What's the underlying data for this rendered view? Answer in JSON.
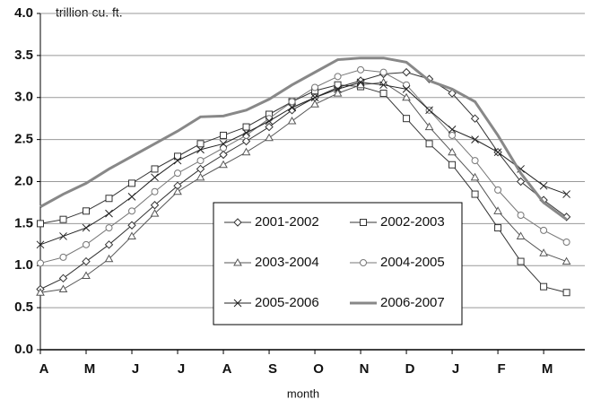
{
  "chart_data": {
    "type": "line",
    "ylabel": "trillion cu. ft.",
    "xlabel": "month",
    "x": [
      0,
      0.5,
      1,
      1.5,
      2,
      2.5,
      3,
      3.5,
      4,
      4.5,
      5,
      5.5,
      6,
      6.5,
      7,
      7.5,
      8,
      8.5,
      9,
      9.5,
      10,
      10.5,
      11,
      11.5
    ],
    "xlim": [
      0,
      11.9
    ],
    "xticks": [
      {
        "value": 0,
        "label": "A"
      },
      {
        "value": 1,
        "label": "M"
      },
      {
        "value": 2,
        "label": "J"
      },
      {
        "value": 3,
        "label": "J"
      },
      {
        "value": 4,
        "label": "A"
      },
      {
        "value": 5,
        "label": "S"
      },
      {
        "value": 6,
        "label": "O"
      },
      {
        "value": 7,
        "label": "N"
      },
      {
        "value": 8,
        "label": "D"
      },
      {
        "value": 9,
        "label": "J"
      },
      {
        "value": 10,
        "label": "F"
      },
      {
        "value": 11,
        "label": "M"
      }
    ],
    "ylim": [
      0,
      4
    ],
    "yticks": [
      {
        "value": 0,
        "label": "0.0"
      },
      0.5,
      {
        "value": 1,
        "label": "1.0"
      },
      1.5,
      {
        "value": 2,
        "label": "2.0"
      },
      2.5,
      {
        "value": 3,
        "label": "3.0"
      },
      3.5,
      {
        "value": 4,
        "label": "4.0"
      }
    ],
    "grid": true,
    "legend": "center",
    "series": [
      {
        "name": "2001-2002",
        "color": "#333333",
        "marker": "diamond",
        "values": [
          0.72,
          0.85,
          1.05,
          1.25,
          1.48,
          1.72,
          1.95,
          2.15,
          2.32,
          2.48,
          2.65,
          2.85,
          3.0,
          3.12,
          3.2,
          3.28,
          3.3,
          3.22,
          3.05,
          2.75,
          2.35,
          2.0,
          1.78,
          1.58
        ]
      },
      {
        "name": "2002-2003",
        "color": "#333333",
        "marker": "square",
        "values": [
          1.5,
          1.55,
          1.65,
          1.8,
          1.98,
          2.15,
          2.3,
          2.45,
          2.55,
          2.65,
          2.8,
          2.95,
          3.08,
          3.15,
          3.13,
          3.05,
          2.75,
          2.45,
          2.2,
          1.85,
          1.45,
          1.05,
          0.75,
          0.68
        ]
      },
      {
        "name": "2003-2004",
        "color": "#555555",
        "marker": "triangle",
        "values": [
          0.68,
          0.72,
          0.88,
          1.08,
          1.35,
          1.62,
          1.88,
          2.05,
          2.2,
          2.35,
          2.52,
          2.72,
          2.92,
          3.05,
          3.15,
          3.18,
          3.0,
          2.65,
          2.35,
          2.05,
          1.65,
          1.35,
          1.15,
          1.05
        ]
      },
      {
        "name": "2004-2005",
        "color": "#777777",
        "marker": "circle",
        "values": [
          1.03,
          1.1,
          1.25,
          1.45,
          1.65,
          1.88,
          2.1,
          2.25,
          2.4,
          2.55,
          2.75,
          2.95,
          3.12,
          3.25,
          3.33,
          3.3,
          3.15,
          2.85,
          2.55,
          2.25,
          1.9,
          1.6,
          1.42,
          1.28
        ]
      },
      {
        "name": "2005-2006",
        "color": "#222222",
        "marker": "x",
        "values": [
          1.25,
          1.35,
          1.45,
          1.62,
          1.82,
          2.05,
          2.25,
          2.38,
          2.45,
          2.58,
          2.72,
          2.88,
          3.0,
          3.1,
          3.18,
          3.15,
          3.1,
          2.85,
          2.62,
          2.5,
          2.35,
          2.15,
          1.95,
          1.85
        ]
      },
      {
        "name": "2006-2007",
        "color": "#888888",
        "marker": "none",
        "values": [
          1.7,
          1.85,
          1.98,
          2.15,
          2.3,
          2.45,
          2.6,
          2.77,
          2.78,
          2.85,
          2.98,
          3.15,
          3.3,
          3.45,
          3.47,
          3.47,
          3.42,
          3.2,
          3.1,
          2.95,
          2.55,
          2.1,
          1.75,
          1.55
        ]
      }
    ]
  }
}
